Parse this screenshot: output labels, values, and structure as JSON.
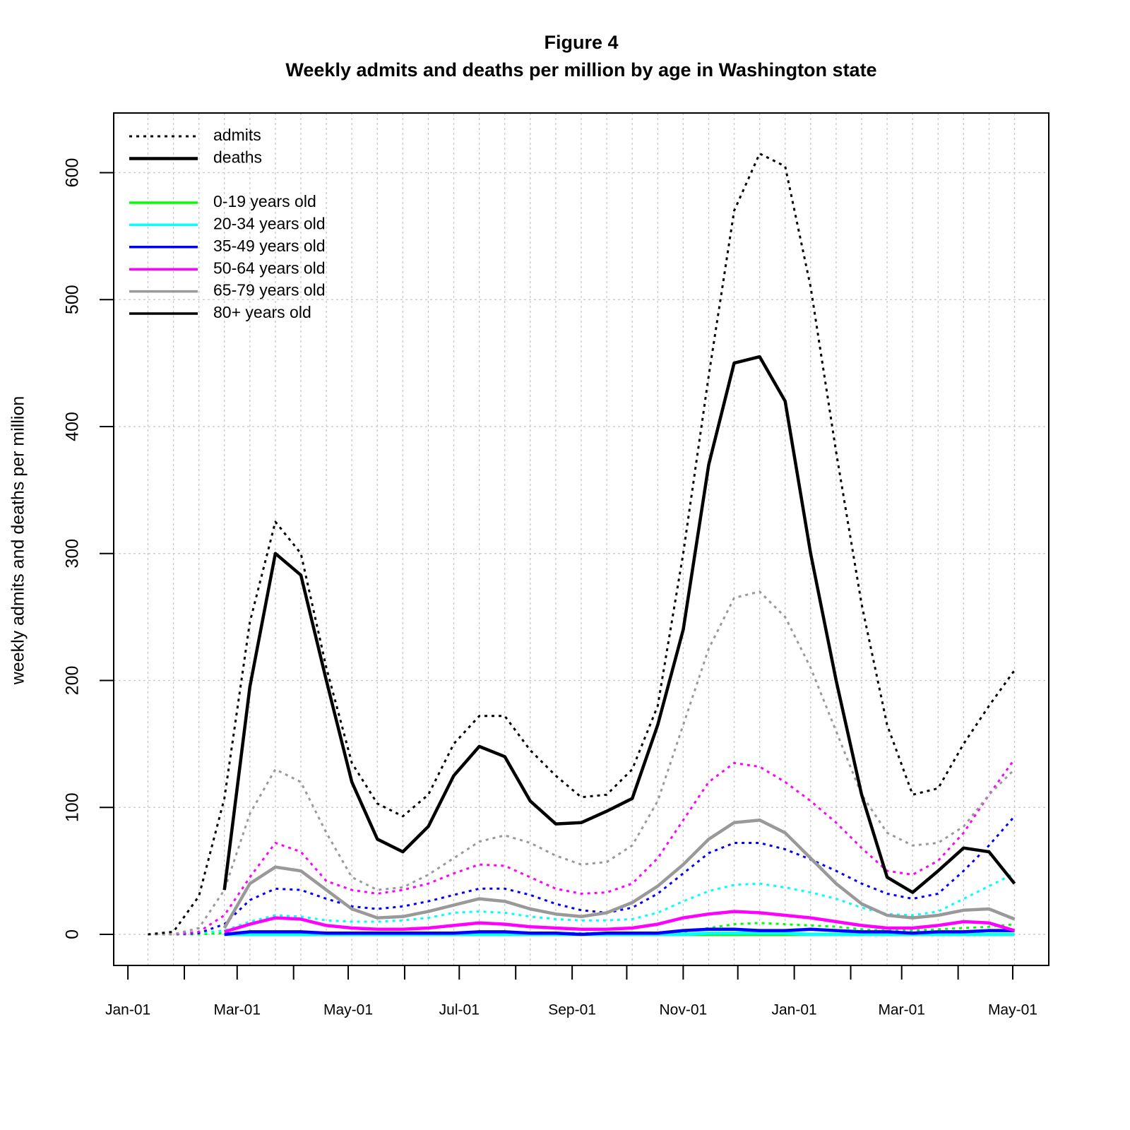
{
  "chart_data": {
    "type": "line",
    "title": "Figure 4",
    "subtitle": "Weekly admits and deaths per million by age in Washington state",
    "y_label": "weekly admits and deaths per million",
    "x": [
      11,
      25,
      39,
      53,
      67,
      81,
      95,
      109,
      123,
      137,
      151,
      165,
      179,
      193,
      207,
      221,
      235,
      249,
      263,
      277,
      291,
      305,
      319,
      333,
      347,
      361,
      375,
      389,
      403,
      417,
      431,
      445,
      459,
      473,
      487
    ],
    "xlim": [
      -7.8,
      505.8
    ],
    "xticks": [
      {
        "value": 0,
        "label": "Jan-01"
      },
      {
        "value": 60,
        "label": "Mar-01"
      },
      {
        "value": 121,
        "label": "May-01"
      },
      {
        "value": 182,
        "label": "Jul-01"
      },
      {
        "value": 244,
        "label": "Sep-01"
      },
      {
        "value": 305,
        "label": "Nov-01"
      },
      {
        "value": 366,
        "label": "Jan-01"
      },
      {
        "value": 425,
        "label": "Mar-01"
      },
      {
        "value": 486,
        "label": "May-01"
      }
    ],
    "xminor_ticks": [
      31,
      91,
      152,
      213,
      274,
      335,
      397,
      456
    ],
    "ylim": [
      -24.5,
      647
    ],
    "yticks": [
      0,
      100,
      200,
      300,
      400,
      500,
      600
    ],
    "grid": true,
    "legend": "top-left",
    "styles": [
      {
        "name": "admits",
        "dash": "dotted"
      },
      {
        "name": "deaths",
        "dash": "solid"
      }
    ],
    "series": [
      {
        "name": "0-19 years old",
        "color": "#00ff00",
        "admits": [
          0,
          0,
          0,
          1,
          1,
          1,
          1,
          1,
          1,
          1,
          1,
          1,
          1,
          1,
          1,
          1,
          1,
          1,
          1,
          1,
          1,
          2,
          5,
          8,
          9,
          8,
          7,
          6,
          4,
          3,
          3,
          4,
          5,
          6,
          8
        ],
        "deaths": [
          null,
          null,
          null,
          0,
          0,
          0,
          0,
          0,
          0,
          0,
          0,
          0,
          0,
          0,
          0,
          0,
          0,
          0,
          0,
          0,
          0,
          0,
          0,
          0,
          0,
          0,
          0,
          0,
          0,
          0,
          0,
          0,
          0,
          0,
          0
        ]
      },
      {
        "name": "20-34 years old",
        "color": "#00ffff",
        "admits": [
          0,
          0,
          1,
          3,
          10,
          15,
          14,
          11,
          10,
          10,
          11,
          13,
          17,
          18,
          17,
          14,
          12,
          11,
          11,
          12,
          17,
          26,
          34,
          39,
          40,
          37,
          33,
          28,
          21,
          16,
          15,
          18,
          28,
          38,
          48
        ],
        "deaths": [
          null,
          null,
          null,
          0,
          0,
          0,
          0,
          0,
          0,
          0,
          0,
          0,
          0,
          0,
          0,
          0,
          0,
          0,
          0,
          0,
          0,
          0,
          1,
          1,
          1,
          1,
          0,
          0,
          0,
          0,
          0,
          0,
          0,
          0,
          0
        ]
      },
      {
        "name": "35-49 years old",
        "color": "#0000ff",
        "admits": [
          0,
          0,
          1,
          8,
          27,
          36,
          35,
          28,
          22,
          20,
          22,
          26,
          31,
          36,
          36,
          31,
          24,
          19,
          17,
          21,
          32,
          48,
          64,
          72,
          72,
          67,
          59,
          50,
          40,
          32,
          28,
          32,
          50,
          70,
          93
        ],
        "deaths": [
          null,
          null,
          null,
          0,
          2,
          2,
          2,
          1,
          1,
          1,
          1,
          1,
          1,
          2,
          2,
          1,
          1,
          0,
          1,
          1,
          1,
          3,
          4,
          4,
          3,
          3,
          4,
          3,
          2,
          2,
          1,
          2,
          2,
          3,
          3
        ]
      },
      {
        "name": "50-64 years old",
        "color": "#ff00ff",
        "admits": [
          0,
          0,
          2,
          15,
          45,
          72,
          65,
          42,
          35,
          32,
          35,
          40,
          48,
          55,
          54,
          45,
          36,
          32,
          33,
          40,
          60,
          90,
          120,
          135,
          132,
          120,
          105,
          88,
          68,
          50,
          47,
          58,
          80,
          110,
          138
        ],
        "deaths": [
          null,
          null,
          null,
          2,
          8,
          13,
          12,
          7,
          5,
          4,
          4,
          5,
          7,
          9,
          8,
          6,
          5,
          4,
          4,
          5,
          8,
          13,
          16,
          18,
          17,
          15,
          13,
          10,
          7,
          5,
          5,
          7,
          10,
          9,
          3
        ]
      },
      {
        "name": "65-79 years old",
        "color": "#999999",
        "admits": [
          0,
          0,
          5,
          35,
          95,
          130,
          120,
          80,
          45,
          35,
          37,
          47,
          60,
          73,
          78,
          72,
          62,
          55,
          57,
          70,
          105,
          165,
          225,
          265,
          270,
          250,
          210,
          160,
          110,
          80,
          70,
          72,
          85,
          110,
          130
        ],
        "deaths": [
          null,
          null,
          null,
          5,
          40,
          53,
          50,
          35,
          20,
          13,
          14,
          18,
          23,
          28,
          26,
          20,
          16,
          14,
          17,
          25,
          38,
          55,
          75,
          88,
          90,
          80,
          60,
          40,
          24,
          15,
          13,
          15,
          19,
          20,
          12
        ]
      },
      {
        "name": "80+ years old",
        "color": "#000000",
        "admits": [
          0,
          2,
          30,
          107,
          246,
          325,
          300,
          210,
          135,
          103,
          93,
          110,
          150,
          172,
          172,
          145,
          125,
          108,
          110,
          130,
          180,
          300,
          440,
          570,
          615,
          605,
          510,
          380,
          260,
          165,
          110,
          115,
          150,
          180,
          208
        ],
        "deaths": [
          null,
          null,
          null,
          35,
          195,
          300,
          283,
          200,
          120,
          75,
          65,
          85,
          125,
          148,
          140,
          105,
          87,
          88,
          97,
          107,
          165,
          240,
          370,
          450,
          455,
          420,
          300,
          200,
          110,
          45,
          33,
          50,
          68,
          65,
          40
        ]
      }
    ]
  }
}
